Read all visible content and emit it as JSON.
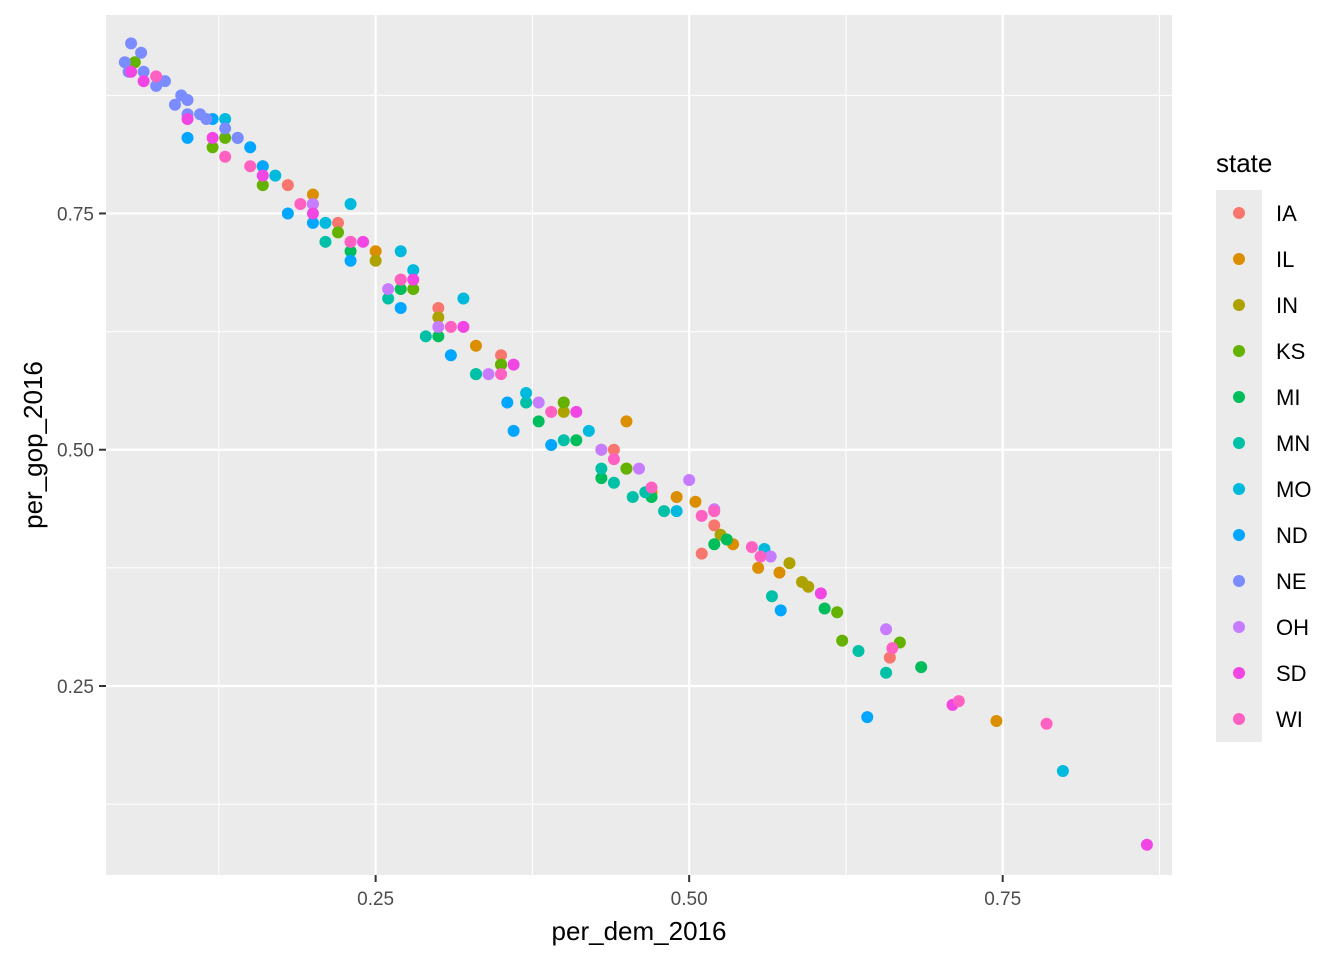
{
  "chart_data": {
    "type": "scatter",
    "title": "",
    "xlabel": "per_dem_2016",
    "ylabel": "per_gop_2016",
    "xlim": [
      0.035,
      0.885
    ],
    "ylim": [
      0.05,
      0.96
    ],
    "x_ticks": [
      0.25,
      0.5,
      0.75
    ],
    "x_tick_labels": [
      "0.25",
      "0.50",
      "0.75"
    ],
    "y_ticks": [
      0.25,
      0.5,
      0.75
    ],
    "y_tick_labels": [
      "0.25",
      "0.50",
      "0.75"
    ],
    "grid": true,
    "legend": {
      "title": "state",
      "placement": "right"
    },
    "series": [
      {
        "name": "IA",
        "color": "#F8766D",
        "points": [
          [
            0.51,
            0.39
          ],
          [
            0.66,
            0.28
          ],
          [
            0.52,
            0.42
          ],
          [
            0.4,
            0.55
          ],
          [
            0.3,
            0.65
          ],
          [
            0.22,
            0.74
          ],
          [
            0.44,
            0.5
          ],
          [
            0.35,
            0.6
          ],
          [
            0.18,
            0.78
          ],
          [
            0.27,
            0.68
          ]
        ]
      },
      {
        "name": "IL",
        "color": "#DB8E00",
        "points": [
          [
            0.745,
            0.213
          ],
          [
            0.45,
            0.53
          ],
          [
            0.535,
            0.4
          ],
          [
            0.555,
            0.375
          ],
          [
            0.572,
            0.37
          ],
          [
            0.49,
            0.45
          ],
          [
            0.505,
            0.445
          ],
          [
            0.47,
            0.455
          ],
          [
            0.33,
            0.61
          ],
          [
            0.25,
            0.71
          ],
          [
            0.2,
            0.77
          ],
          [
            0.43,
            0.5
          ]
        ]
      },
      {
        "name": "IN",
        "color": "#AEA200",
        "points": [
          [
            0.58,
            0.38
          ],
          [
            0.59,
            0.36
          ],
          [
            0.595,
            0.355
          ],
          [
            0.525,
            0.41
          ],
          [
            0.45,
            0.48
          ],
          [
            0.4,
            0.54
          ],
          [
            0.35,
            0.59
          ],
          [
            0.3,
            0.64
          ],
          [
            0.25,
            0.7
          ],
          [
            0.2,
            0.76
          ],
          [
            0.16,
            0.8
          ]
        ]
      },
      {
        "name": "KS",
        "color": "#64B200",
        "points": [
          [
            0.058,
            0.91
          ],
          [
            0.618,
            0.328
          ],
          [
            0.622,
            0.298
          ],
          [
            0.668,
            0.296
          ],
          [
            0.45,
            0.48
          ],
          [
            0.4,
            0.55
          ],
          [
            0.35,
            0.59
          ],
          [
            0.28,
            0.67
          ],
          [
            0.22,
            0.73
          ],
          [
            0.16,
            0.78
          ],
          [
            0.13,
            0.83
          ],
          [
            0.12,
            0.82
          ]
        ]
      },
      {
        "name": "MI",
        "color": "#00BD5C",
        "points": [
          [
            0.608,
            0.332
          ],
          [
            0.685,
            0.27
          ],
          [
            0.53,
            0.405
          ],
          [
            0.52,
            0.4
          ],
          [
            0.47,
            0.45
          ],
          [
            0.43,
            0.47
          ],
          [
            0.41,
            0.51
          ],
          [
            0.38,
            0.53
          ],
          [
            0.33,
            0.58
          ],
          [
            0.3,
            0.62
          ],
          [
            0.27,
            0.67
          ],
          [
            0.23,
            0.71
          ]
        ]
      },
      {
        "name": "MN",
        "color": "#00C1A7",
        "points": [
          [
            0.657,
            0.264
          ],
          [
            0.635,
            0.287
          ],
          [
            0.566,
            0.345
          ],
          [
            0.455,
            0.45
          ],
          [
            0.465,
            0.455
          ],
          [
            0.48,
            0.435
          ],
          [
            0.44,
            0.465
          ],
          [
            0.43,
            0.48
          ],
          [
            0.4,
            0.51
          ],
          [
            0.37,
            0.55
          ],
          [
            0.33,
            0.58
          ],
          [
            0.29,
            0.62
          ],
          [
            0.26,
            0.66
          ],
          [
            0.21,
            0.72
          ]
        ]
      },
      {
        "name": "MO",
        "color": "#00BADE",
        "points": [
          [
            0.798,
            0.16
          ],
          [
            0.56,
            0.395
          ],
          [
            0.49,
            0.435
          ],
          [
            0.28,
            0.69
          ],
          [
            0.27,
            0.71
          ],
          [
            0.32,
            0.66
          ],
          [
            0.23,
            0.76
          ],
          [
            0.21,
            0.74
          ],
          [
            0.17,
            0.79
          ],
          [
            0.14,
            0.83
          ],
          [
            0.13,
            0.85
          ],
          [
            0.37,
            0.56
          ],
          [
            0.42,
            0.52
          ]
        ]
      },
      {
        "name": "ND",
        "color": "#00A6FF",
        "points": [
          [
            0.642,
            0.217
          ],
          [
            0.573,
            0.33
          ],
          [
            0.39,
            0.505
          ],
          [
            0.36,
            0.52
          ],
          [
            0.355,
            0.55
          ],
          [
            0.31,
            0.6
          ],
          [
            0.27,
            0.65
          ],
          [
            0.23,
            0.7
          ],
          [
            0.2,
            0.74
          ],
          [
            0.18,
            0.75
          ],
          [
            0.16,
            0.8
          ],
          [
            0.1,
            0.83
          ],
          [
            0.12,
            0.85
          ],
          [
            0.15,
            0.82
          ]
        ]
      },
      {
        "name": "NE",
        "color": "#7A8CFF",
        "points": [
          [
            0.05,
            0.91
          ],
          [
            0.053,
            0.9
          ],
          [
            0.055,
            0.93
          ],
          [
            0.063,
            0.92
          ],
          [
            0.065,
            0.9
          ],
          [
            0.075,
            0.885
          ],
          [
            0.082,
            0.89
          ],
          [
            0.09,
            0.865
          ],
          [
            0.095,
            0.875
          ],
          [
            0.1,
            0.87
          ],
          [
            0.1,
            0.855
          ],
          [
            0.11,
            0.855
          ],
          [
            0.115,
            0.85
          ],
          [
            0.13,
            0.84
          ],
          [
            0.14,
            0.83
          ]
        ]
      },
      {
        "name": "OH",
        "color": "#C77CFF",
        "points": [
          [
            0.657,
            0.31
          ],
          [
            0.565,
            0.387
          ],
          [
            0.5,
            0.468
          ],
          [
            0.52,
            0.437
          ],
          [
            0.46,
            0.48
          ],
          [
            0.43,
            0.5
          ],
          [
            0.38,
            0.55
          ],
          [
            0.34,
            0.58
          ],
          [
            0.3,
            0.63
          ],
          [
            0.26,
            0.67
          ],
          [
            0.23,
            0.72
          ],
          [
            0.2,
            0.76
          ]
        ]
      },
      {
        "name": "SD",
        "color": "#F146E3",
        "points": [
          [
            0.865,
            0.082
          ],
          [
            0.71,
            0.23
          ],
          [
            0.605,
            0.348
          ],
          [
            0.055,
            0.9
          ],
          [
            0.065,
            0.89
          ],
          [
            0.1,
            0.85
          ],
          [
            0.12,
            0.83
          ],
          [
            0.16,
            0.79
          ],
          [
            0.2,
            0.75
          ],
          [
            0.24,
            0.72
          ],
          [
            0.28,
            0.68
          ],
          [
            0.32,
            0.63
          ],
          [
            0.36,
            0.59
          ],
          [
            0.41,
            0.54
          ]
        ]
      },
      {
        "name": "WI",
        "color": "#FF61C3",
        "points": [
          [
            0.785,
            0.21
          ],
          [
            0.715,
            0.234
          ],
          [
            0.662,
            0.29
          ],
          [
            0.557,
            0.387
          ],
          [
            0.55,
            0.397
          ],
          [
            0.52,
            0.435
          ],
          [
            0.51,
            0.43
          ],
          [
            0.47,
            0.46
          ],
          [
            0.44,
            0.49
          ],
          [
            0.39,
            0.54
          ],
          [
            0.35,
            0.58
          ],
          [
            0.31,
            0.63
          ],
          [
            0.27,
            0.68
          ],
          [
            0.23,
            0.72
          ],
          [
            0.19,
            0.76
          ],
          [
            0.15,
            0.8
          ],
          [
            0.075,
            0.895
          ],
          [
            0.13,
            0.81
          ]
        ]
      }
    ]
  }
}
